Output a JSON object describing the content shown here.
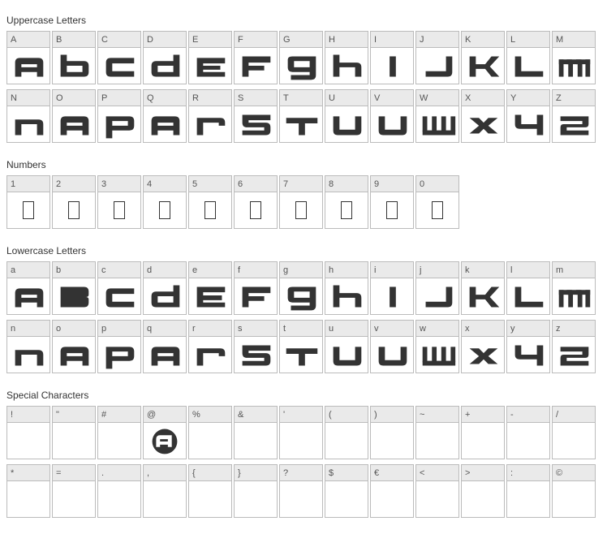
{
  "title_fontsize": 12,
  "cell": {
    "width": 54,
    "label_height": 20,
    "glyph_height": 44,
    "border_color": "#bbbbbb",
    "label_bg": "#eaeaea",
    "label_color": "#555555",
    "glyph_color": "#333333",
    "background": "#ffffff"
  },
  "sections": {
    "uppercase": {
      "title": "Uppercase Letters",
      "rows": [
        [
          {
            "label": "A",
            "glyph": "a"
          },
          {
            "label": "B",
            "glyph": "b"
          },
          {
            "label": "C",
            "glyph": "c"
          },
          {
            "label": "D",
            "glyph": "d"
          },
          {
            "label": "E",
            "glyph": "e"
          },
          {
            "label": "F",
            "glyph": "F"
          },
          {
            "label": "G",
            "glyph": "g"
          },
          {
            "label": "H",
            "glyph": "h"
          },
          {
            "label": "I",
            "glyph": "I"
          },
          {
            "label": "J",
            "glyph": "J"
          },
          {
            "label": "K",
            "glyph": "K"
          },
          {
            "label": "L",
            "glyph": "L"
          },
          {
            "label": "M",
            "glyph": "m"
          }
        ],
        [
          {
            "label": "N",
            "glyph": "n"
          },
          {
            "label": "O",
            "glyph": "a"
          },
          {
            "label": "P",
            "glyph": "p"
          },
          {
            "label": "Q",
            "glyph": "a"
          },
          {
            "label": "R",
            "glyph": "r"
          },
          {
            "label": "S",
            "glyph": "5"
          },
          {
            "label": "T",
            "glyph": "t"
          },
          {
            "label": "U",
            "glyph": "u"
          },
          {
            "label": "V",
            "glyph": "u"
          },
          {
            "label": "W",
            "glyph": "w"
          },
          {
            "label": "X",
            "glyph": "x"
          },
          {
            "label": "Y",
            "glyph": "4"
          },
          {
            "label": "Z",
            "glyph": "2"
          }
        ]
      ]
    },
    "numbers": {
      "title": "Numbers",
      "rows": [
        [
          {
            "label": "1",
            "glyph": "",
            "empty": true
          },
          {
            "label": "2",
            "glyph": "",
            "empty": true
          },
          {
            "label": "3",
            "glyph": "",
            "empty": true
          },
          {
            "label": "4",
            "glyph": "",
            "empty": true
          },
          {
            "label": "5",
            "glyph": "",
            "empty": true
          },
          {
            "label": "6",
            "glyph": "",
            "empty": true
          },
          {
            "label": "7",
            "glyph": "",
            "empty": true
          },
          {
            "label": "8",
            "glyph": "",
            "empty": true
          },
          {
            "label": "9",
            "glyph": "",
            "empty": true
          },
          {
            "label": "0",
            "glyph": "",
            "empty": true
          }
        ]
      ]
    },
    "lowercase": {
      "title": "Lowercase Letters",
      "rows": [
        [
          {
            "label": "a",
            "glyph": "a"
          },
          {
            "label": "b",
            "glyph": "B"
          },
          {
            "label": "c",
            "glyph": "c"
          },
          {
            "label": "d",
            "glyph": "d"
          },
          {
            "label": "e",
            "glyph": "E"
          },
          {
            "label": "f",
            "glyph": "F"
          },
          {
            "label": "g",
            "glyph": "g"
          },
          {
            "label": "h",
            "glyph": "h"
          },
          {
            "label": "i",
            "glyph": "I"
          },
          {
            "label": "j",
            "glyph": "J"
          },
          {
            "label": "k",
            "glyph": "K"
          },
          {
            "label": "l",
            "glyph": "L"
          },
          {
            "label": "m",
            "glyph": "m"
          }
        ],
        [
          {
            "label": "n",
            "glyph": "n"
          },
          {
            "label": "o",
            "glyph": "a"
          },
          {
            "label": "p",
            "glyph": "p"
          },
          {
            "label": "q",
            "glyph": "a"
          },
          {
            "label": "r",
            "glyph": "r"
          },
          {
            "label": "s",
            "glyph": "5"
          },
          {
            "label": "t",
            "glyph": "t"
          },
          {
            "label": "u",
            "glyph": "u"
          },
          {
            "label": "v",
            "glyph": "u"
          },
          {
            "label": "w",
            "glyph": "w"
          },
          {
            "label": "x",
            "glyph": "x"
          },
          {
            "label": "y",
            "glyph": "4"
          },
          {
            "label": "z",
            "glyph": "2"
          }
        ]
      ]
    },
    "special": {
      "title": "Special Characters",
      "rows": [
        [
          {
            "label": "!",
            "glyph": ""
          },
          {
            "label": "\"",
            "glyph": ""
          },
          {
            "label": "#",
            "glyph": ""
          },
          {
            "label": "@",
            "glyph": "@",
            "has_at": true
          },
          {
            "label": "%",
            "glyph": ""
          },
          {
            "label": "&",
            "glyph": ""
          },
          {
            "label": "'",
            "glyph": ""
          },
          {
            "label": "(",
            "glyph": ""
          },
          {
            "label": ")",
            "glyph": ""
          },
          {
            "label": "~",
            "glyph": ""
          },
          {
            "label": "+",
            "glyph": ""
          },
          {
            "label": "-",
            "glyph": ""
          },
          {
            "label": "/",
            "glyph": ""
          }
        ],
        [
          {
            "label": "*",
            "glyph": ""
          },
          {
            "label": "=",
            "glyph": ""
          },
          {
            "label": ".",
            "glyph": ""
          },
          {
            "label": ",",
            "glyph": ""
          },
          {
            "label": "{",
            "glyph": ""
          },
          {
            "label": "}",
            "glyph": ""
          },
          {
            "label": "?",
            "glyph": ""
          },
          {
            "label": "$",
            "glyph": ""
          },
          {
            "label": "€",
            "glyph": ""
          },
          {
            "label": "<",
            "glyph": ""
          },
          {
            "label": ">",
            "glyph": ""
          },
          {
            "label": ":",
            "glyph": ""
          },
          {
            "label": "©",
            "glyph": ""
          }
        ]
      ]
    }
  }
}
